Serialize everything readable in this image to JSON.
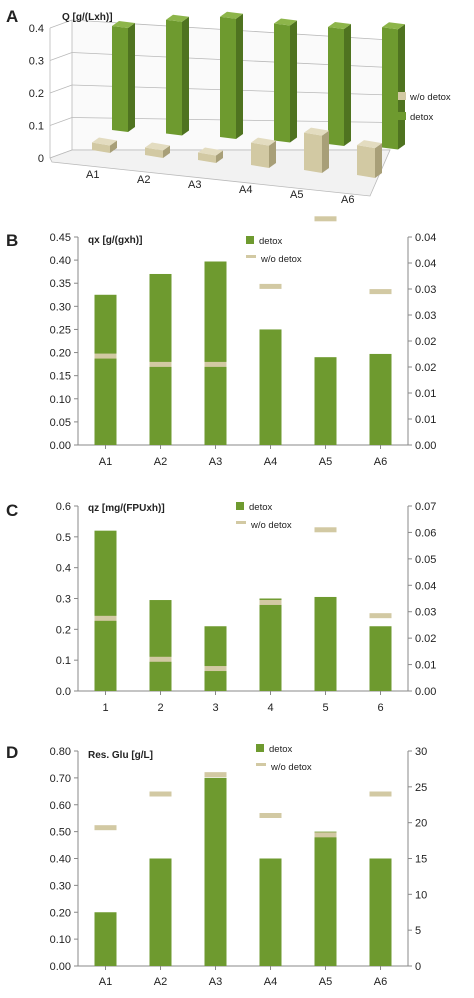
{
  "colors": {
    "detox": "#6e9a2f",
    "detox_dark": "#4f7320",
    "detox_top": "#8db54a",
    "wo": "#d2c9a3",
    "wo_dark": "#a89f78",
    "wo_top": "#e3dcc0",
    "grid3d": "#b9b9b9",
    "axis": "#888888"
  },
  "chart_data": [
    {
      "panel": "A",
      "type": "bar",
      "title": "Q  [g/(Lxh)]",
      "categories": [
        "A1",
        "A2",
        "A3",
        "A4",
        "A5",
        "A6"
      ],
      "yticks": [
        "0.4",
        "0.3",
        "0.2",
        "0.1",
        "0"
      ],
      "ylim": [
        0,
        0.4
      ],
      "legend": [
        "w/o detox",
        "detox"
      ],
      "legend_position": "right",
      "series": [
        {
          "name": "w/o detox",
          "values": [
            0.01,
            0.01,
            0.01,
            0.03,
            0.05,
            0.04
          ]
        },
        {
          "name": "detox",
          "values": [
            0.32,
            0.35,
            0.37,
            0.36,
            0.36,
            0.37
          ]
        }
      ]
    },
    {
      "panel": "B",
      "type": "bar",
      "title": "qx  [g/(gxh)]",
      "categories": [
        "A1",
        "A2",
        "A3",
        "A4",
        "A5",
        "A6"
      ],
      "ylim": [
        0,
        0.45
      ],
      "y2lim": [
        0,
        0.04
      ],
      "yticks": [
        "0.00",
        "0.05",
        "0.10",
        "0.15",
        "0.20",
        "0.25",
        "0.30",
        "0.35",
        "0.40",
        "0.45"
      ],
      "y2ticks": [
        "0.00",
        "0.01",
        "0.01",
        "0.02",
        "0.02",
        "0.03",
        "0.03",
        "0.04",
        "0.04"
      ],
      "legend": [
        "detox",
        "w/o detox"
      ],
      "legend_position": "top-right",
      "series": [
        {
          "name": "detox",
          "axis": "left",
          "values": [
            0.325,
            0.37,
            0.397,
            0.25,
            0.19,
            0.197
          ]
        },
        {
          "name": "w/o detox",
          "axis": "right",
          "values": [
            0.0171,
            0.0155,
            0.0155,
            0.0305,
            0.0435,
            0.0295
          ]
        }
      ]
    },
    {
      "panel": "C",
      "type": "bar",
      "title": "qz  [mg/(FPUxh)]",
      "categories": [
        "1",
        "2",
        "3",
        "4",
        "5",
        "6"
      ],
      "ylim": [
        0,
        0.6
      ],
      "y2lim": [
        0,
        0.07
      ],
      "yticks": [
        "0.0",
        "0.1",
        "0.2",
        "0.3",
        "0.4",
        "0.5",
        "0.6"
      ],
      "y2ticks": [
        "0.00",
        "0.01",
        "0.02",
        "0.03",
        "0.04",
        "0.05",
        "0.06",
        "0.07"
      ],
      "legend": [
        "detox",
        "w/o detox"
      ],
      "legend_position": "top-right",
      "series": [
        {
          "name": "detox",
          "axis": "left",
          "values": [
            0.52,
            0.295,
            0.21,
            0.3,
            0.305,
            0.21
          ]
        },
        {
          "name": "w/o detox",
          "axis": "right",
          "values": [
            0.0275,
            0.012,
            0.0085,
            0.0335,
            0.061,
            0.0285
          ]
        }
      ]
    },
    {
      "panel": "D",
      "type": "bar",
      "title": "Res. Glu  [g/L]",
      "categories": [
        "A1",
        "A2",
        "A3",
        "A4",
        "A5",
        "A6"
      ],
      "ylim": [
        0,
        0.8
      ],
      "y2lim": [
        0,
        30
      ],
      "yticks": [
        "0.00",
        "0.10",
        "0.20",
        "0.30",
        "0.40",
        "0.50",
        "0.60",
        "0.70",
        "0.80"
      ],
      "y2ticks": [
        "0",
        "5",
        "10",
        "15",
        "20",
        "25",
        "30"
      ],
      "legend": [
        "detox",
        "w/o detox"
      ],
      "legend_position": "top-right",
      "series": [
        {
          "name": "detox",
          "axis": "left",
          "values": [
            0.2,
            0.4,
            0.7,
            0.4,
            0.5,
            0.4
          ]
        },
        {
          "name": "w/o detox",
          "axis": "right",
          "values": [
            19.3,
            24,
            26.7,
            21,
            18.3,
            24
          ]
        }
      ]
    }
  ]
}
